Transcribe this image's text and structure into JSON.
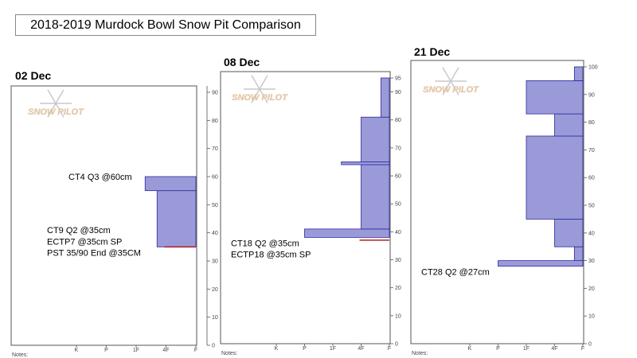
{
  "title": "2018-2019 Murdock Bowl Snow Pit Comparison",
  "logo_text": "SNOW PILOT",
  "colors": {
    "bar_fill": "#9b9ad9",
    "bar_stroke": "#2a2a9c",
    "weak_layer": "#b02020",
    "frame": "#555555"
  },
  "chart_data": [
    {
      "type": "bar",
      "date": "02 Dec",
      "xticks": [
        "K",
        "P",
        "1F",
        "4F",
        "F"
      ],
      "ylim": [
        0,
        90
      ],
      "yticks": [
        0,
        10,
        20,
        30,
        40,
        50,
        60,
        70,
        80,
        90
      ],
      "notes_label": "Notes:",
      "hardness_segments": [
        {
          "bottom": 0,
          "top": 35,
          "hardness": "F"
        },
        {
          "bottom": 35,
          "top": 55,
          "hardness": "4F+"
        },
        {
          "bottom": 55,
          "top": 60,
          "hardness": "1F-"
        },
        {
          "bottom": 60,
          "top": 90,
          "hardness": "F"
        }
      ],
      "weak_layer": 35,
      "annotations": [
        {
          "text": "CT4 Q3 @60cm",
          "height": 60
        },
        {
          "text": "CT9 Q2 @35cm",
          "height": 41
        },
        {
          "text": "ECTP7 @35cm SP",
          "height": 37
        },
        {
          "text": "PST 35/90 End @35CM",
          "height": 33
        }
      ]
    },
    {
      "type": "bar",
      "date": "08 Dec",
      "xticks": [
        "K",
        "P",
        "1F",
        "4F",
        "F"
      ],
      "ylim": [
        0,
        95
      ],
      "yticks": [
        0,
        10,
        20,
        30,
        40,
        50,
        60,
        70,
        80,
        90,
        95
      ],
      "notes_label": "Notes:",
      "hardness_segments": [
        {
          "bottom": 0,
          "top": 38,
          "hardness": "F"
        },
        {
          "bottom": 38,
          "top": 41,
          "hardness": "P"
        },
        {
          "bottom": 41,
          "top": 64,
          "hardness": "4F"
        },
        {
          "bottom": 64,
          "top": 65,
          "hardness": "1F-"
        },
        {
          "bottom": 65,
          "top": 81,
          "hardness": "4F"
        },
        {
          "bottom": 81,
          "top": 95,
          "hardness": "F+"
        }
      ],
      "weak_layer": 37,
      "annotations": [
        {
          "text": "CT18 Q2 @35cm",
          "height": 36
        },
        {
          "text": "ECTP18 @35cm SP",
          "height": 32
        }
      ]
    },
    {
      "type": "bar",
      "date": "21 Dec",
      "xticks": [
        "K",
        "P",
        "1F",
        "4F",
        "F"
      ],
      "ylim": [
        0,
        100
      ],
      "yticks": [
        0,
        10,
        20,
        30,
        40,
        50,
        60,
        70,
        80,
        90,
        100
      ],
      "notes_label": "Notes:",
      "hardness_segments": [
        {
          "bottom": 0,
          "top": 28,
          "hardness": "F"
        },
        {
          "bottom": 28,
          "top": 30,
          "hardness": "P"
        },
        {
          "bottom": 30,
          "top": 35,
          "hardness": "F+"
        },
        {
          "bottom": 35,
          "top": 45,
          "hardness": "4F"
        },
        {
          "bottom": 45,
          "top": 75,
          "hardness": "1F"
        },
        {
          "bottom": 75,
          "top": 83,
          "hardness": "4F"
        },
        {
          "bottom": 83,
          "top": 95,
          "hardness": "1F"
        },
        {
          "bottom": 95,
          "top": 100,
          "hardness": "F+"
        }
      ],
      "weak_layer": null,
      "annotations": [
        {
          "text": "CT28 Q2 @27cm",
          "height": 26
        }
      ]
    }
  ]
}
